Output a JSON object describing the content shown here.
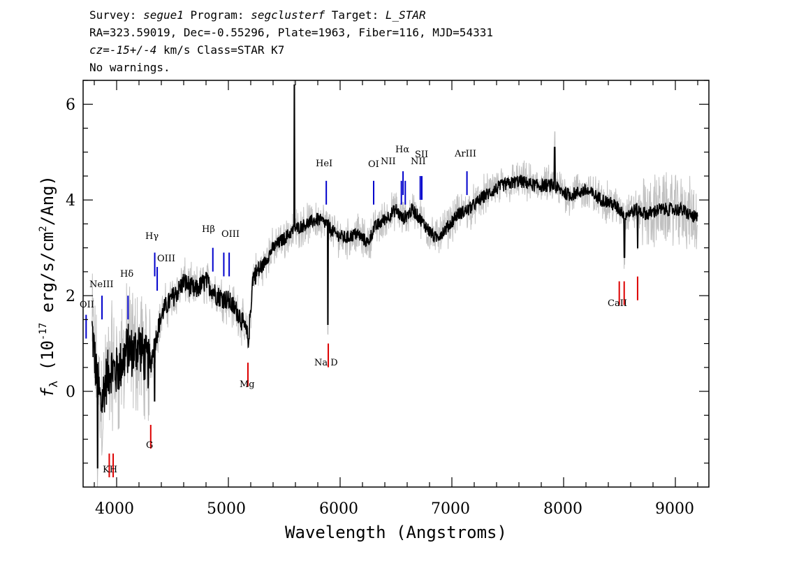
{
  "header": {
    "line1_a": "Survey: ",
    "line1_b": "segue1",
    "line1_c": " Program: ",
    "line1_d": "segclusterf",
    "line1_e": " Target: ",
    "line1_f": "L_STAR",
    "line2": "RA=323.59019, Dec=-0.55296, Plate=1963, Fiber=116, MJD=54331",
    "line3_a": "cz=-15+/-4",
    "line3_b": " km/s Class=STAR K7",
    "line4": "No warnings."
  },
  "chart_data": {
    "type": "line",
    "xlabel": "Wavelength (Angstroms)",
    "ylabel_main": "f",
    "ylabel_sub": "λ",
    "ylabel_units_a": " (10",
    "ylabel_units_exp": "-17",
    "ylabel_units_b": " erg/s/cm",
    "ylabel_units_exp2": "2",
    "ylabel_units_c": "/Ang)",
    "xlim": [
      3700,
      9300
    ],
    "ylim": [
      -2.0,
      6.5
    ],
    "x_ticks": [
      4000,
      5000,
      6000,
      7000,
      8000,
      9000
    ],
    "x_tick_labels": [
      "4000",
      "5000",
      "6000",
      "7000",
      "8000",
      "9000"
    ],
    "y_ticks": [
      0,
      2,
      4,
      6
    ],
    "y_tick_labels": [
      "0",
      "2",
      "4",
      "6"
    ],
    "colors": {
      "flux": "#000000",
      "error": "#c0c0c0",
      "emission": "#0000cc",
      "absorption": "#dd0000"
    },
    "spectrum_anchors": [
      [
        3780,
        1.3
      ],
      [
        3820,
        0.3
      ],
      [
        3860,
        -0.3
      ],
      [
        3900,
        0.2
      ],
      [
        3950,
        0.5
      ],
      [
        4000,
        0.4
      ],
      [
        4050,
        0.6
      ],
      [
        4100,
        0.9
      ],
      [
        4150,
        0.8
      ],
      [
        4200,
        1.0
      ],
      [
        4250,
        0.7
      ],
      [
        4300,
        0.5
      ],
      [
        4330,
        0.9
      ],
      [
        4380,
        1.4
      ],
      [
        4420,
        1.7
      ],
      [
        4480,
        1.9
      ],
      [
        4550,
        2.1
      ],
      [
        4600,
        2.3
      ],
      [
        4700,
        2.1
      ],
      [
        4800,
        2.3
      ],
      [
        4900,
        2.0
      ],
      [
        5000,
        1.9
      ],
      [
        5100,
        1.6
      ],
      [
        5180,
        1.1
      ],
      [
        5220,
        2.4
      ],
      [
        5300,
        2.6
      ],
      [
        5400,
        3.0
      ],
      [
        5500,
        3.2
      ],
      [
        5600,
        3.4
      ],
      [
        5700,
        3.5
      ],
      [
        5800,
        3.6
      ],
      [
        5880,
        3.5
      ],
      [
        5950,
        3.3
      ],
      [
        6050,
        3.2
      ],
      [
        6150,
        3.3
      ],
      [
        6250,
        3.1
      ],
      [
        6300,
        3.4
      ],
      [
        6400,
        3.6
      ],
      [
        6500,
        3.8
      ],
      [
        6560,
        3.6
      ],
      [
        6650,
        3.8
      ],
      [
        6750,
        3.5
      ],
      [
        6850,
        3.2
      ],
      [
        6950,
        3.4
      ],
      [
        7050,
        3.7
      ],
      [
        7150,
        3.8
      ],
      [
        7300,
        4.1
      ],
      [
        7450,
        4.3
      ],
      [
        7600,
        4.4
      ],
      [
        7750,
        4.3
      ],
      [
        7900,
        4.3
      ],
      [
        8050,
        4.1
      ],
      [
        8200,
        4.2
      ],
      [
        8350,
        4.0
      ],
      [
        8450,
        3.9
      ],
      [
        8550,
        3.7
      ],
      [
        8650,
        3.8
      ],
      [
        8750,
        3.7
      ],
      [
        8850,
        3.8
      ],
      [
        8950,
        3.8
      ],
      [
        9050,
        3.8
      ],
      [
        9200,
        3.6
      ]
    ],
    "spectrum_features": [
      {
        "x": 5590,
        "y": 6.4
      },
      {
        "x": 5890,
        "y": 1.4
      },
      {
        "x": 3830,
        "y": -1.6
      },
      {
        "x": 7920,
        "y": 5.1
      },
      {
        "x": 8544,
        "y": 2.8
      },
      {
        "x": 8662,
        "y": 3.0
      },
      {
        "x": 4340,
        "y": -0.2
      },
      {
        "x": 5185,
        "y": 1.1
      }
    ],
    "lines": [
      {
        "label": "OII",
        "x": 3727,
        "y": 1.6,
        "color": "emission"
      },
      {
        "label": "NeIII",
        "x": 3869,
        "y": 2.0,
        "color": "emission"
      },
      {
        "label": "Hδ",
        "x": 4102,
        "y": 2.0,
        "color": "emission"
      },
      {
        "label": "Hγ",
        "x": 4341,
        "y": 2.9,
        "color": "emission"
      },
      {
        "label": "OIII",
        "x": 4363,
        "y": 2.6,
        "color": "emission"
      },
      {
        "label": "Hβ",
        "x": 4861,
        "y": 3.0,
        "color": "emission"
      },
      {
        "label": "OIII",
        "x": 4959,
        "y": 2.9,
        "color": "emission"
      },
      {
        "label": "OIII",
        "x": 5007,
        "y": 2.9,
        "color": "emission"
      },
      {
        "label": "HeI",
        "x": 5876,
        "y": 4.4,
        "color": "emission"
      },
      {
        "label": "OI",
        "x": 6300,
        "y": 4.4,
        "color": "emission"
      },
      {
        "label": "NII",
        "x": 6548,
        "y": 4.4,
        "color": "emission"
      },
      {
        "label": "Hα",
        "x": 6563,
        "y": 4.6,
        "color": "emission"
      },
      {
        "label": "NII",
        "x": 6583,
        "y": 4.4,
        "color": "emission"
      },
      {
        "label": "SII",
        "x": 6717,
        "y": 4.5,
        "color": "emission"
      },
      {
        "label": "SII",
        "x": 6731,
        "y": 4.5,
        "color": "emission"
      },
      {
        "label": "ArIII",
        "x": 7135,
        "y": 4.6,
        "color": "emission"
      },
      {
        "label": "K",
        "x": 3934,
        "y": -1.3,
        "color": "absorption"
      },
      {
        "label": "H",
        "x": 3969,
        "y": -1.3,
        "color": "absorption"
      },
      {
        "label": "G",
        "x": 4305,
        "y": -0.7,
        "color": "absorption"
      },
      {
        "label": "Mg",
        "x": 5175,
        "y": 0.6,
        "color": "absorption"
      },
      {
        "label": "Na D",
        "x": 5894,
        "y": 1.0,
        "color": "absorption"
      },
      {
        "label": "CaII",
        "x": 8498,
        "y": 2.3,
        "color": "absorption"
      },
      {
        "label": "CaII",
        "x": 8542,
        "y": 2.3,
        "color": "absorption"
      },
      {
        "label": "CaII",
        "x": 8662,
        "y": 2.4,
        "color": "absorption"
      }
    ],
    "line_label_texts": {
      "oii": "OII",
      "neiii": "NeIII",
      "hdelta": "Hδ",
      "hgamma": "Hγ",
      "oiii_a": "OIII",
      "hbeta": "Hβ",
      "oiii_b": "OIII",
      "hei": "HeI",
      "oi": "OI",
      "nii_a": "NII",
      "halpha": "Hα",
      "nii_b": "NII",
      "sii": "SII",
      "ariii": "ArIII",
      "kh": "KH",
      "g": "G",
      "mg": "Mg",
      "nad": "Na D",
      "caii": "CaII"
    }
  }
}
